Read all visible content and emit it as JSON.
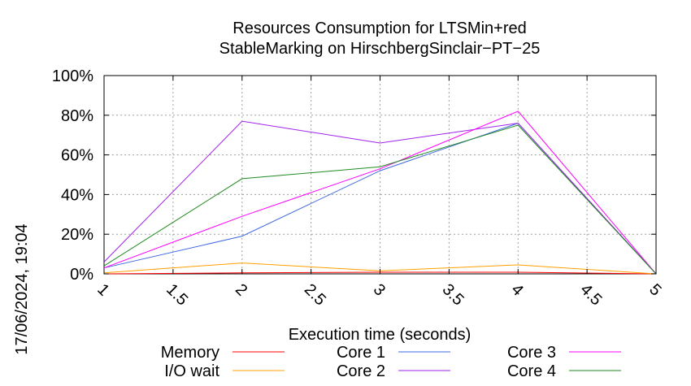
{
  "timestamp": "17/06/2024, 19:04",
  "chart_data": {
    "type": "line",
    "title_lines": [
      "Resources Consumption for LTSMin+red",
      "StableMarking on HirschbergSinclair−PT−25"
    ],
    "xlabel": "Execution time (seconds)",
    "ylabel": "",
    "xlim": [
      1,
      5
    ],
    "ylim": [
      0,
      100
    ],
    "x_ticks": [
      "1",
      "1.5",
      "2",
      "2.5",
      "3",
      "3.5",
      "4",
      "4.5",
      "5"
    ],
    "y_ticks": [
      "0%",
      "20%",
      "40%",
      "60%",
      "80%",
      "100%"
    ],
    "grid": true,
    "legend_position": "bottom",
    "x": [
      1,
      2,
      3,
      4,
      5
    ],
    "series": [
      {
        "name": "Memory",
        "color": "#ff0000",
        "values": [
          0,
          0.5,
          0.8,
          0.8,
          0
        ]
      },
      {
        "name": "I/O wait",
        "color": "#ffa000",
        "values": [
          0.5,
          5.5,
          1.5,
          4.5,
          0
        ]
      },
      {
        "name": "Core 1",
        "color": "#4169e1",
        "values": [
          3,
          19,
          52,
          76,
          0
        ]
      },
      {
        "name": "Core 2",
        "color": "#a020f0",
        "values": [
          6,
          77,
          66,
          76,
          0
        ]
      },
      {
        "name": "Core 3",
        "color": "#ff00ff",
        "values": [
          3,
          29,
          53,
          82,
          0
        ]
      },
      {
        "name": "Core 4",
        "color": "#228b22",
        "values": [
          4,
          48,
          54,
          75,
          0
        ]
      }
    ]
  }
}
